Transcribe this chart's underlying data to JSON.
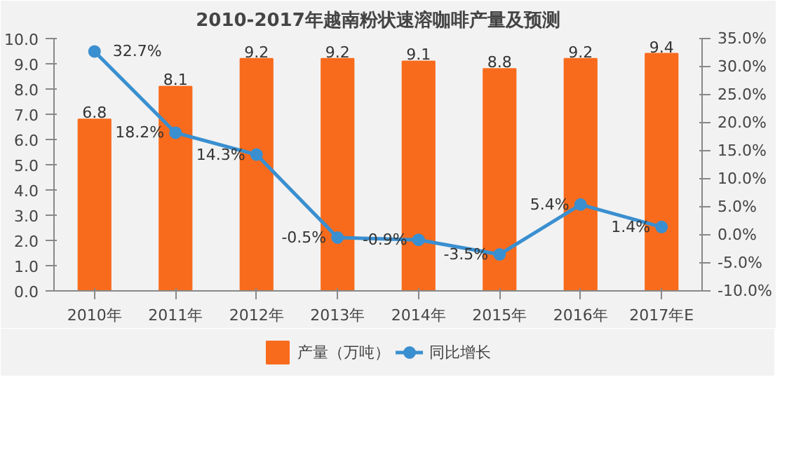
{
  "chart_data": {
    "type": "bar",
    "title": "2010-2017年越南粉状速溶咖啡产量及预测",
    "categories": [
      "2010年",
      "2011年",
      "2012年",
      "2013年",
      "2014年",
      "2015年",
      "2016年",
      "2017年E"
    ],
    "series": [
      {
        "name": "产量（万吨）",
        "color": "#f96b1c",
        "values": [
          6.8,
          8.1,
          9.2,
          9.2,
          9.1,
          8.8,
          9.2,
          9.4
        ],
        "value_labels": [
          "6.8",
          "8.1",
          "9.2",
          "9.2",
          "9.1",
          "8.8",
          "9.2",
          "9.4"
        ]
      },
      {
        "name": "同比增长",
        "type": "line",
        "axis": "y2",
        "color": "#3a8fd0",
        "values": [
          32.7,
          18.2,
          14.3,
          -0.5,
          -0.9,
          -3.5,
          5.4,
          1.4
        ],
        "value_labels": [
          "32.7%",
          "18.2%",
          "14.3%",
          "-0.5%",
          "-0.9%",
          "-3.5%",
          "5.4%",
          "1.4%"
        ]
      }
    ],
    "ylim": [
      0,
      10
    ],
    "yticks": [
      {
        "value": 0,
        "label": "0.0"
      },
      {
        "value": 1,
        "label": "1.0"
      },
      {
        "value": 2,
        "label": "2.0"
      },
      {
        "value": 3,
        "label": "3.0"
      },
      {
        "value": 4,
        "label": "4.0"
      },
      {
        "value": 5,
        "label": "5.0"
      },
      {
        "value": 6,
        "label": "6.0"
      },
      {
        "value": 7,
        "label": "7.0"
      },
      {
        "value": 8,
        "label": "8.0"
      },
      {
        "value": 9,
        "label": "9.0"
      },
      {
        "value": 10,
        "label": "10.0"
      }
    ],
    "y2lim": [
      -10,
      35
    ],
    "y2ticks": [
      {
        "value": -10,
        "label": "-10.0%"
      },
      {
        "value": -5,
        "label": "-5.0%"
      },
      {
        "value": 0,
        "label": "0.0%"
      },
      {
        "value": 5,
        "label": "5.0%"
      },
      {
        "value": 10,
        "label": "10.0%"
      },
      {
        "value": 15,
        "label": "15.0%"
      },
      {
        "value": 20,
        "label": "20.0%"
      },
      {
        "value": 25,
        "label": "25.0%"
      },
      {
        "value": 30,
        "label": "30.0%"
      },
      {
        "value": 35,
        "label": "35.0%"
      }
    ],
    "marker": "circle",
    "legend": "bottom",
    "grid": false
  }
}
